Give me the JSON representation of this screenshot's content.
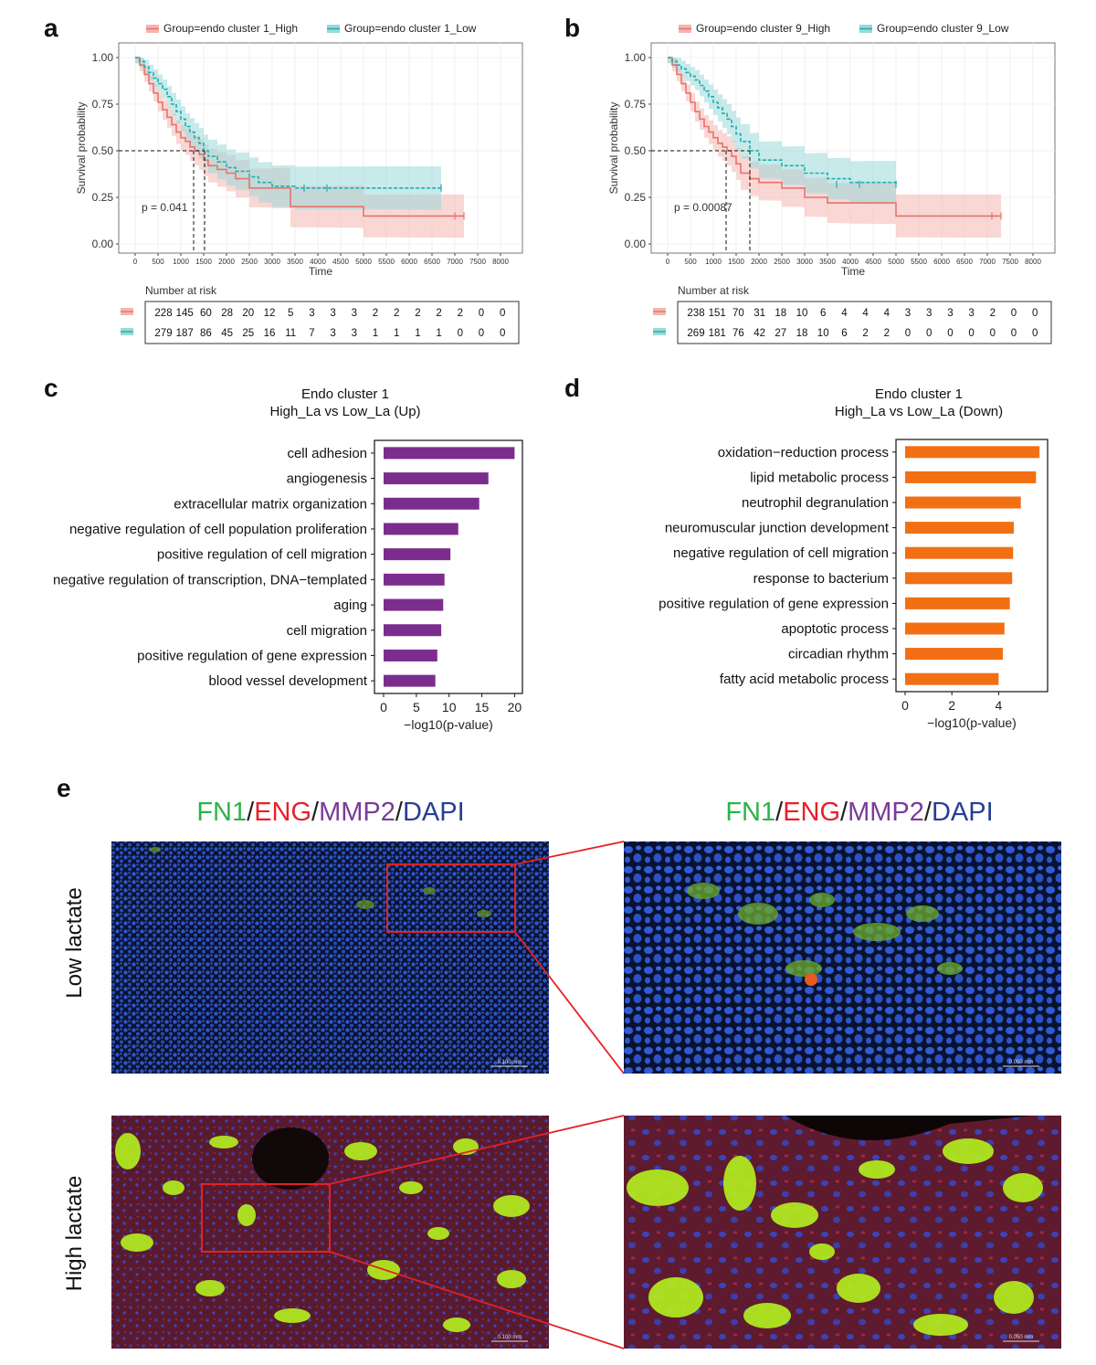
{
  "colors": {
    "high": "#E8736B",
    "high_band": "#F4B6B0",
    "low": "#1EAFB3",
    "low_band": "#9BD9D8",
    "up_bar": "#7B2D8E",
    "down_bar": "#F26F13",
    "fn1": "#2DB34A",
    "eng": "#E8202A",
    "mmp2": "#7A3A9A",
    "dapi": "#253F94"
  },
  "panels": {
    "a": "a",
    "b": "b",
    "c": "c",
    "d": "d",
    "e": "e"
  },
  "km": [
    {
      "legend_high": "Group=endo cluster 1_High",
      "legend_low": "Group=endo cluster 1_Low",
      "ylabel": "Survival probability",
      "xlabel": "Time",
      "pvalue": "p = 0.041",
      "risk_title": "Number at risk",
      "yticks": [
        "0.00",
        "0.25",
        "0.50",
        "0.75",
        "1.00"
      ],
      "xticks": [
        "0",
        "500",
        "1000",
        "1500",
        "2000",
        "2500",
        "3000",
        "3500",
        "4000",
        "4500",
        "5000",
        "5500",
        "6000",
        "6500",
        "7000",
        "7500",
        "8000"
      ],
      "median_high": 1280,
      "median_low": 1520,
      "high_curve": [
        [
          0,
          1.0
        ],
        [
          100,
          0.96
        ],
        [
          200,
          0.91
        ],
        [
          300,
          0.86
        ],
        [
          400,
          0.81
        ],
        [
          500,
          0.76
        ],
        [
          600,
          0.72
        ],
        [
          700,
          0.68
        ],
        [
          800,
          0.64
        ],
        [
          900,
          0.6
        ],
        [
          1000,
          0.57
        ],
        [
          1100,
          0.55
        ],
        [
          1200,
          0.52
        ],
        [
          1300,
          0.5
        ],
        [
          1400,
          0.48
        ],
        [
          1500,
          0.45
        ],
        [
          1600,
          0.42
        ],
        [
          1800,
          0.4
        ],
        [
          2000,
          0.38
        ],
        [
          2200,
          0.35
        ],
        [
          2500,
          0.3
        ],
        [
          3000,
          0.3
        ],
        [
          3400,
          0.2
        ],
        [
          5000,
          0.15
        ],
        [
          7200,
          0.15
        ]
      ],
      "low_curve": [
        [
          0,
          1.0
        ],
        [
          100,
          0.98
        ],
        [
          200,
          0.95
        ],
        [
          300,
          0.92
        ],
        [
          400,
          0.89
        ],
        [
          500,
          0.86
        ],
        [
          600,
          0.83
        ],
        [
          700,
          0.79
        ],
        [
          800,
          0.75
        ],
        [
          900,
          0.71
        ],
        [
          1000,
          0.67
        ],
        [
          1100,
          0.63
        ],
        [
          1200,
          0.6
        ],
        [
          1300,
          0.57
        ],
        [
          1400,
          0.54
        ],
        [
          1500,
          0.5
        ],
        [
          1600,
          0.47
        ],
        [
          1800,
          0.44
        ],
        [
          2000,
          0.41
        ],
        [
          2200,
          0.39
        ],
        [
          2500,
          0.36
        ],
        [
          2700,
          0.33
        ],
        [
          3000,
          0.31
        ],
        [
          3500,
          0.3
        ],
        [
          6700,
          0.3
        ]
      ],
      "risk_high": [
        "228",
        "145",
        "60",
        "28",
        "20",
        "12",
        "5",
        "3",
        "3",
        "3",
        "2",
        "2",
        "2",
        "2",
        "2",
        "0",
        "0"
      ],
      "risk_low": [
        "279",
        "187",
        "86",
        "45",
        "25",
        "16",
        "11",
        "7",
        "3",
        "3",
        "1",
        "1",
        "1",
        "1",
        "0",
        "0",
        "0"
      ]
    },
    {
      "legend_high": "Group=endo cluster 9_High",
      "legend_low": "Group=endo cluster 9_Low",
      "ylabel": "Survival probability",
      "xlabel": "Time",
      "pvalue": "p = 0.00087",
      "risk_title": "Number at risk",
      "yticks": [
        "0.00",
        "0.25",
        "0.50",
        "0.75",
        "1.00"
      ],
      "xticks": [
        "0",
        "500",
        "1000",
        "1500",
        "2000",
        "2500",
        "3000",
        "3500",
        "4000",
        "4500",
        "5000",
        "5500",
        "6000",
        "6500",
        "7000",
        "7500",
        "8000"
      ],
      "median_high": 1280,
      "median_low": 1800,
      "high_curve": [
        [
          0,
          1.0
        ],
        [
          100,
          0.96
        ],
        [
          200,
          0.91
        ],
        [
          300,
          0.86
        ],
        [
          400,
          0.81
        ],
        [
          500,
          0.76
        ],
        [
          600,
          0.71
        ],
        [
          700,
          0.67
        ],
        [
          800,
          0.63
        ],
        [
          900,
          0.6
        ],
        [
          1000,
          0.57
        ],
        [
          1100,
          0.54
        ],
        [
          1200,
          0.52
        ],
        [
          1300,
          0.5
        ],
        [
          1400,
          0.47
        ],
        [
          1500,
          0.43
        ],
        [
          1600,
          0.38
        ],
        [
          1800,
          0.35
        ],
        [
          2000,
          0.33
        ],
        [
          2500,
          0.3
        ],
        [
          3000,
          0.25
        ],
        [
          3500,
          0.22
        ],
        [
          4000,
          0.22
        ],
        [
          5000,
          0.15
        ],
        [
          7300,
          0.15
        ]
      ],
      "low_curve": [
        [
          0,
          1.0
        ],
        [
          100,
          0.98
        ],
        [
          200,
          0.96
        ],
        [
          300,
          0.94
        ],
        [
          400,
          0.92
        ],
        [
          500,
          0.9
        ],
        [
          600,
          0.88
        ],
        [
          700,
          0.85
        ],
        [
          800,
          0.82
        ],
        [
          900,
          0.79
        ],
        [
          1000,
          0.76
        ],
        [
          1100,
          0.73
        ],
        [
          1200,
          0.7
        ],
        [
          1300,
          0.67
        ],
        [
          1400,
          0.63
        ],
        [
          1500,
          0.59
        ],
        [
          1600,
          0.55
        ],
        [
          1800,
          0.5
        ],
        [
          2000,
          0.45
        ],
        [
          2500,
          0.42
        ],
        [
          3000,
          0.38
        ],
        [
          3500,
          0.35
        ],
        [
          4000,
          0.33
        ],
        [
          5000,
          0.32
        ]
      ],
      "risk_high": [
        "238",
        "151",
        "70",
        "31",
        "18",
        "10",
        "6",
        "4",
        "4",
        "4",
        "3",
        "3",
        "3",
        "3",
        "2",
        "0",
        "0"
      ],
      "risk_low": [
        "269",
        "181",
        "76",
        "42",
        "27",
        "18",
        "10",
        "6",
        "2",
        "2",
        "0",
        "0",
        "0",
        "0",
        "0",
        "0",
        "0"
      ]
    }
  ],
  "chart_data": [
    {
      "type": "bar",
      "title": "Endo cluster 1",
      "subtitle": "High_La vs Low_La (Up)",
      "xlabel": "−log10(p-value)",
      "xlim": [
        0,
        20.5
      ],
      "ticks": [
        "0",
        "5",
        "10",
        "15",
        "20"
      ],
      "categories": [
        "cell adhesion",
        "angiogenesis",
        "extracellular matrix organization",
        "negative regulation of cell population proliferation",
        "positive regulation of cell migration",
        "negative regulation of transcription, DNA−templated",
        "aging",
        "cell migration",
        "positive regulation of gene expression",
        "blood vessel development"
      ],
      "values": [
        20.0,
        16.0,
        14.6,
        11.4,
        10.2,
        9.3,
        9.1,
        8.8,
        8.2,
        7.9
      ]
    },
    {
      "type": "bar",
      "title": "Endo cluster 1",
      "subtitle": "High_La vs Low_La (Down)",
      "xlabel": "−log10(p-value)",
      "xlim": [
        0,
        5.9
      ],
      "ticks": [
        "0",
        "2",
        "4"
      ],
      "categories": [
        "oxidation−reduction process",
        "lipid metabolic process",
        "neutrophil degranulation",
        "neuromuscular junction development",
        "negative regulation of cell migration",
        "response to bacterium",
        "positive regulation of gene expression",
        "apoptotic process",
        "circadian rhythm",
        "fatty acid metabolic process"
      ],
      "values": [
        5.75,
        5.6,
        4.95,
        4.65,
        4.62,
        4.58,
        4.48,
        4.25,
        4.18,
        4.0
      ]
    }
  ],
  "micro": {
    "header_parts": [
      "FN1",
      "/",
      "ENG",
      "/",
      "MMP2",
      "/",
      "DAPI"
    ],
    "row_low": "Low lactate",
    "row_high": "High lactate",
    "scale_wide": "0.100 mm",
    "scale_zoom": "0.050 mm"
  }
}
